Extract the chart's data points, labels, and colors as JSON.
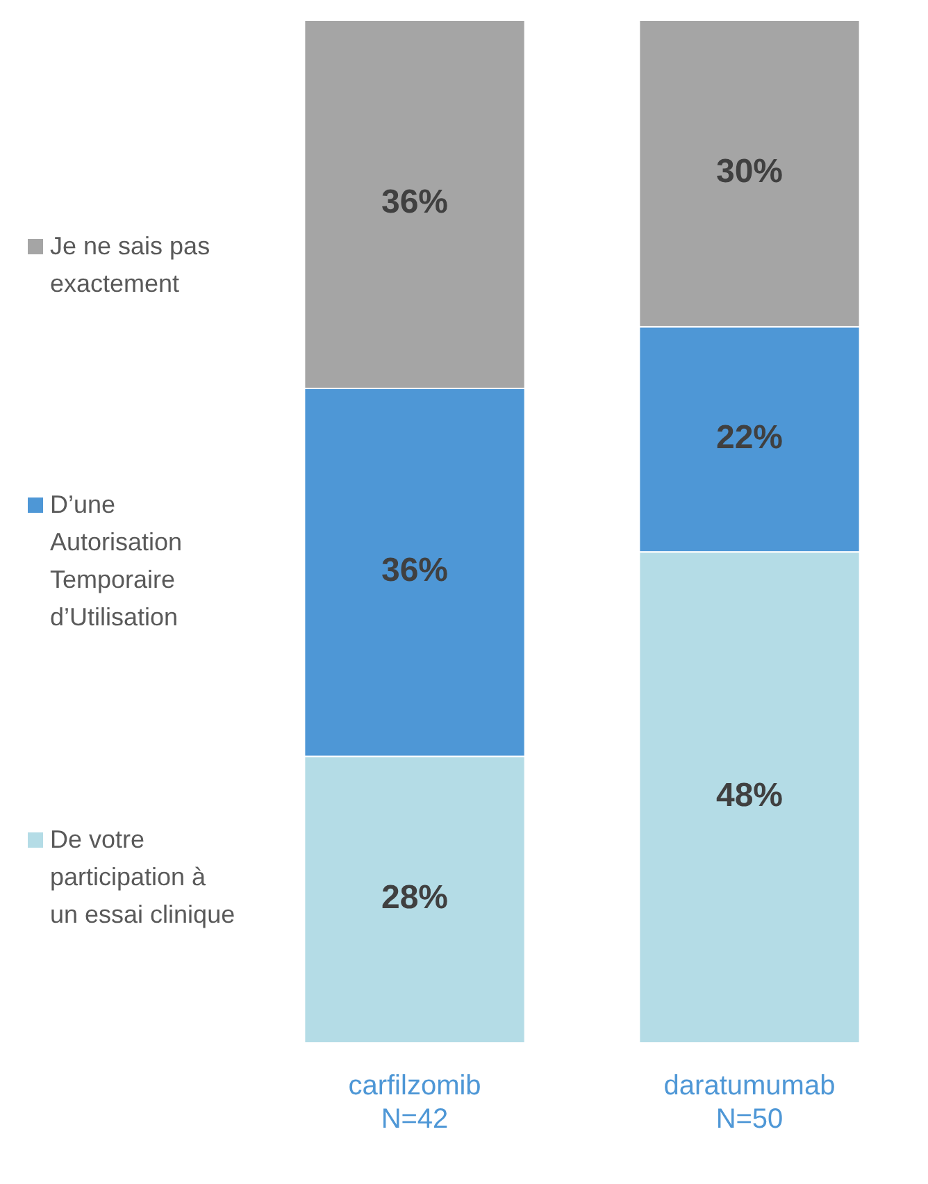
{
  "chart_data": {
    "type": "bar",
    "stacked": true,
    "tick_labels": "x",
    "legend": "left",
    "grid": false,
    "categories": [
      "carfilzomib\nN=42",
      "daratumumab\nN=50"
    ],
    "series": [
      {
        "name": "De votre participation à un essai clinique",
        "color": "#b4dce6",
        "values": [
          28,
          48
        ],
        "value_labels": [
          "28%",
          "48%"
        ]
      },
      {
        "name": "D’une Autorisation Temporaire d’Utilisation",
        "color": "#4e97d6",
        "values": [
          36,
          22
        ],
        "value_labels": [
          "36%",
          "22%"
        ]
      },
      {
        "name": "Je ne sais pas exactement",
        "color": "#a5a5a5",
        "values": [
          36,
          30
        ],
        "value_labels": [
          "36%",
          "30%"
        ]
      }
    ]
  }
}
